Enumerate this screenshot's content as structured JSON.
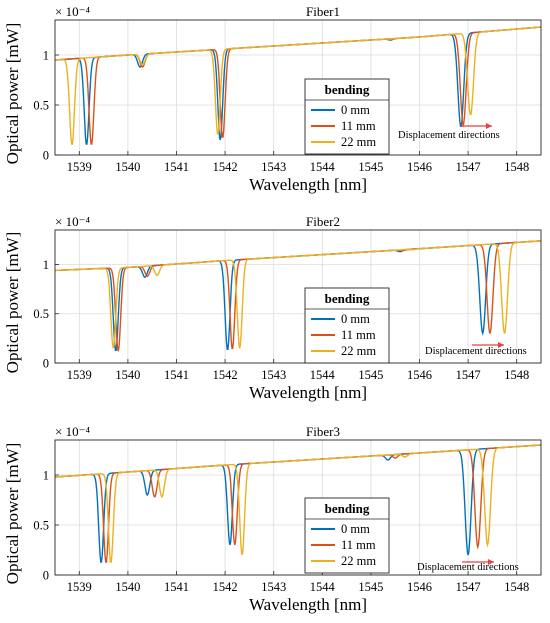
{
  "colors": {
    "series_0mm": "#0072BD",
    "series_11mm": "#D95319",
    "series_22mm": "#EDB120",
    "arrow": "#e84040",
    "grid": "#dcdcdc"
  },
  "chart_data": [
    {
      "type": "line",
      "title": "Fiber1",
      "xlabel": "Wavelength [nm]",
      "ylabel": "Optical power [mW]",
      "exponent_label": "× 10⁻⁴",
      "xlim": [
        1538.5,
        1548.5
      ],
      "ylim": [
        0,
        1.35
      ],
      "xticks": [
        "1539",
        "1540",
        "1541",
        "1542",
        "1543",
        "1544",
        "1545",
        "1546",
        "1547",
        "1548"
      ],
      "yticks": [
        "0",
        "0.5",
        "1"
      ],
      "grid": true,
      "legend": {
        "title": "bending",
        "placement": "center-right"
      },
      "annotation": "Displacement directions",
      "baseline": [
        [
          1538.5,
          0.95
        ],
        [
          1540.0,
          1.0
        ],
        [
          1542.0,
          1.06
        ],
        [
          1544.0,
          1.12
        ],
        [
          1546.0,
          1.18
        ],
        [
          1548.5,
          1.28
        ]
      ],
      "series": [
        {
          "name": "0 mm",
          "dips": [
            [
              1539.15,
              0.1,
              0.05
            ],
            [
              1540.25,
              0.88,
              0.05
            ],
            [
              1541.9,
              0.15,
              0.05
            ],
            [
              1545.4,
              1.15,
              0.05
            ],
            [
              1546.85,
              0.28,
              0.06
            ]
          ]
        },
        {
          "name": "11 mm",
          "dips": [
            [
              1539.25,
              0.1,
              0.05
            ],
            [
              1540.3,
              0.88,
              0.05
            ],
            [
              1541.95,
              0.17,
              0.05
            ],
            [
              1545.4,
              1.16,
              0.05
            ],
            [
              1546.9,
              0.3,
              0.06
            ]
          ]
        },
        {
          "name": "22 mm",
          "dips": [
            [
              1538.85,
              0.1,
              0.05
            ],
            [
              1540.3,
              0.9,
              0.05
            ],
            [
              1541.85,
              0.2,
              0.05
            ],
            [
              1545.4,
              1.16,
              0.05
            ],
            [
              1547.05,
              0.4,
              0.06
            ]
          ]
        }
      ]
    },
    {
      "type": "line",
      "title": "Fiber2",
      "xlabel": "Wavelength [nm]",
      "ylabel": "Optical power [mW]",
      "exponent_label": "× 10⁻⁴",
      "xlim": [
        1538.5,
        1548.5
      ],
      "ylim": [
        0,
        1.35
      ],
      "xticks": [
        "1539",
        "1540",
        "1541",
        "1542",
        "1543",
        "1544",
        "1545",
        "1546",
        "1547",
        "1548"
      ],
      "yticks": [
        "0",
        "0.5",
        "1"
      ],
      "grid": true,
      "legend": {
        "title": "bending",
        "placement": "center-right"
      },
      "annotation": "Displacement directions",
      "baseline": [
        [
          1538.5,
          0.94
        ],
        [
          1540.0,
          0.97
        ],
        [
          1542.0,
          1.04
        ],
        [
          1544.0,
          1.1
        ],
        [
          1546.0,
          1.16
        ],
        [
          1548.5,
          1.24
        ]
      ],
      "series": [
        {
          "name": "0 mm",
          "dips": [
            [
              1539.75,
              0.12,
              0.05
            ],
            [
              1540.35,
              0.87,
              0.05
            ],
            [
              1542.05,
              0.13,
              0.05
            ],
            [
              1545.6,
              1.13,
              0.05
            ],
            [
              1547.3,
              0.3,
              0.06
            ]
          ]
        },
        {
          "name": "11 mm",
          "dips": [
            [
              1539.8,
              0.12,
              0.05
            ],
            [
              1540.4,
              0.88,
              0.05
            ],
            [
              1542.15,
              0.14,
              0.05
            ],
            [
              1545.65,
              1.14,
              0.05
            ],
            [
              1547.45,
              0.3,
              0.06
            ]
          ]
        },
        {
          "name": "22 mm",
          "dips": [
            [
              1539.7,
              0.15,
              0.05
            ],
            [
              1540.6,
              0.89,
              0.05
            ],
            [
              1542.3,
              0.15,
              0.05
            ],
            [
              1545.85,
              1.15,
              0.05
            ],
            [
              1547.75,
              0.3,
              0.06
            ]
          ]
        }
      ]
    },
    {
      "type": "line",
      "title": "Fiber3",
      "xlabel": "Wavelength [nm]",
      "ylabel": "Optical power [mW]",
      "exponent_label": "× 10⁻⁴",
      "xlim": [
        1538.5,
        1548.5
      ],
      "ylim": [
        0,
        1.35
      ],
      "xticks": [
        "1539",
        "1540",
        "1541",
        "1542",
        "1543",
        "1544",
        "1545",
        "1546",
        "1547",
        "1548"
      ],
      "yticks": [
        "0",
        "0.5",
        "1"
      ],
      "grid": true,
      "legend": {
        "title": "bending",
        "placement": "center-right"
      },
      "annotation": "Displacement directions",
      "baseline": [
        [
          1538.5,
          0.98
        ],
        [
          1540.0,
          1.03
        ],
        [
          1542.0,
          1.1
        ],
        [
          1544.0,
          1.16
        ],
        [
          1546.0,
          1.22
        ],
        [
          1548.5,
          1.3
        ]
      ],
      "series": [
        {
          "name": "0 mm",
          "dips": [
            [
              1539.45,
              0.12,
              0.05
            ],
            [
              1540.4,
              0.8,
              0.05
            ],
            [
              1542.1,
              0.3,
              0.05
            ],
            [
              1545.35,
              1.15,
              0.05
            ],
            [
              1547.0,
              0.2,
              0.06
            ]
          ]
        },
        {
          "name": "11 mm",
          "dips": [
            [
              1539.55,
              0.12,
              0.05
            ],
            [
              1540.55,
              0.78,
              0.05
            ],
            [
              1542.2,
              0.3,
              0.05
            ],
            [
              1545.5,
              1.17,
              0.05
            ],
            [
              1547.2,
              0.28,
              0.06
            ]
          ]
        },
        {
          "name": "22 mm",
          "dips": [
            [
              1539.65,
              0.12,
              0.05
            ],
            [
              1540.7,
              0.78,
              0.05
            ],
            [
              1542.35,
              0.2,
              0.05
            ],
            [
              1545.7,
              1.18,
              0.05
            ],
            [
              1547.4,
              0.3,
              0.06
            ]
          ]
        }
      ]
    }
  ]
}
